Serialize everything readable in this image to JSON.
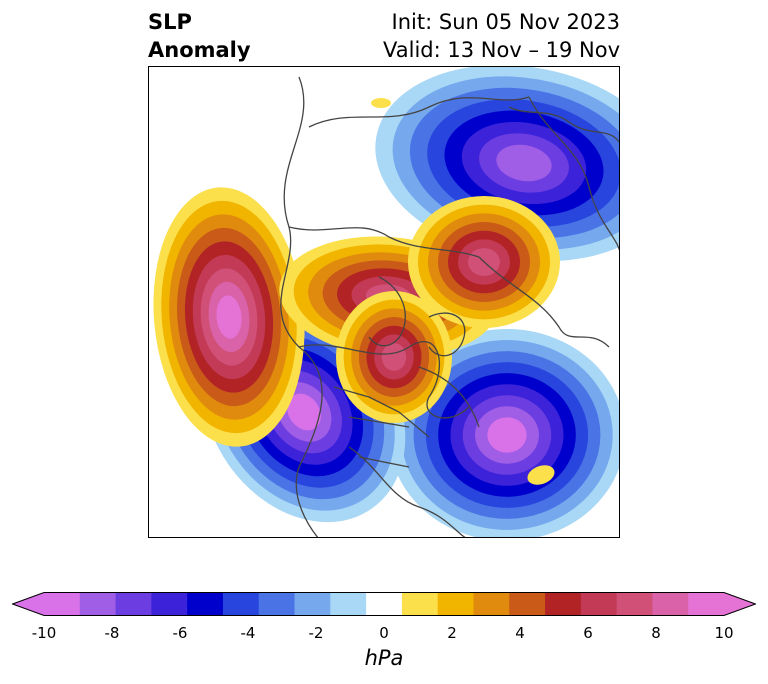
{
  "title": {
    "left_line1": "SLP",
    "left_line2": "Anomaly",
    "right_line1": "Init: Sun 05 Nov 2023",
    "right_line2": "Valid: 13 Nov – 19 Nov"
  },
  "colorbar": {
    "units": "hPa",
    "ticks": [
      "-10",
      "-8",
      "-6",
      "-4",
      "-2",
      "0",
      "2",
      "4",
      "6",
      "8",
      "10"
    ],
    "levels": [
      -10,
      -9,
      -8,
      -7,
      -6,
      -5,
      -4,
      -3,
      -2,
      -1,
      1,
      2,
      3,
      4,
      5,
      6,
      7,
      8,
      9,
      10
    ],
    "colors": [
      "#d971e9",
      "#a05ee6",
      "#6c3de0",
      "#3c23da",
      "#0000cc",
      "#2846de",
      "#4a74e6",
      "#76a8ee",
      "#a8d8f6",
      "#ffffff",
      "#fbe04b",
      "#f1b500",
      "#e08a0e",
      "#c95a18",
      "#b22326",
      "#c23a55",
      "#d05077",
      "#d962a9",
      "#e473d5"
    ],
    "under_color": "#d971e9",
    "over_color": "#e473d5"
  },
  "map": {
    "projection": "north-polar stereographic",
    "region": "Northern Hemisphere"
  }
}
